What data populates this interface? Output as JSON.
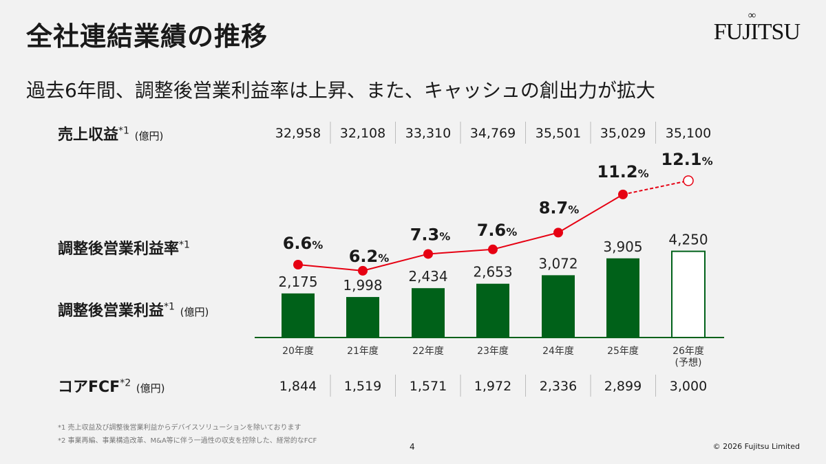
{
  "title": "全社連結業績の推移",
  "subtitle": "過去6年間、調整後営業利益率は上昇、また、キャッシュの創出力が拡大",
  "logo": "FUJITSU",
  "rows": {
    "revenue": {
      "label": "売上収益",
      "note": "*1",
      "unit": "(億円)",
      "values": [
        "32,958",
        "32,108",
        "33,310",
        "34,769",
        "35,501",
        "35,029",
        "35,100"
      ]
    },
    "margin": {
      "label": "調整後営業利益率",
      "note": "*1"
    },
    "profit": {
      "label": "調整後営業利益",
      "note": "*1",
      "unit": "(億円)"
    },
    "fcf": {
      "label": "コアFCF",
      "note": "*2",
      "unit": "(億円)",
      "values": [
        "1,844",
        "1,519",
        "1,571",
        "1,972",
        "2,336",
        "2,899",
        "3,000"
      ]
    }
  },
  "chart_data": {
    "type": "bar+line",
    "categories": [
      "20年度",
      "21年度",
      "22年度",
      "23年度",
      "24年度",
      "25年度",
      "26年度 (予想)"
    ],
    "series": [
      {
        "name": "調整後営業利益",
        "type": "bar",
        "values": [
          2175,
          1998,
          2434,
          2653,
          3072,
          3905,
          4250
        ],
        "labels": [
          "2,175",
          "1,998",
          "2,434",
          "2,653",
          "3,072",
          "3,905",
          "4,250"
        ],
        "color": "#006119",
        "forecast_last": true
      },
      {
        "name": "調整後営業利益率",
        "type": "line",
        "unit": "%",
        "values": [
          6.6,
          6.2,
          7.3,
          7.6,
          8.7,
          11.2,
          12.1
        ],
        "labels": [
          "6.6",
          "6.2",
          "7.3",
          "7.6",
          "8.7",
          "11.2",
          "12.1"
        ],
        "color": "#e60012",
        "forecast_last": true
      }
    ]
  },
  "footnotes": [
    "*1 売上収益及び調整後営業利益からデバイスソリューションを除いております",
    "*2 事業再編、事業構造改革、M&A等に伴う一過性の収支を控除した、経常的なFCF"
  ],
  "page": "4",
  "copyright": "© 2026 Fujitsu Limited"
}
